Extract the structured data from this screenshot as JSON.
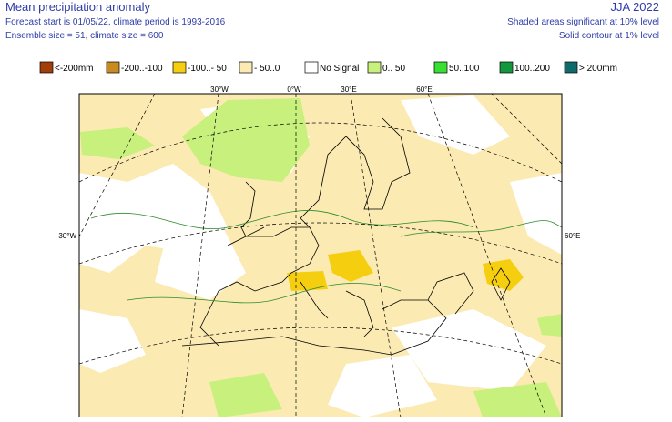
{
  "header": {
    "title": "Mean precipitation anomaly",
    "line1": "Forecast start is 01/05/22, climate period is 1993-2016",
    "line2": "Ensemble size = 51, climate size = 600",
    "season": "JJA 2022",
    "note1": "Shaded areas significant at 10% level",
    "note2": "Solid contour at 1% level"
  },
  "legend": [
    {
      "label": "<-200mm",
      "color": "#a23e0a"
    },
    {
      "label": "-200..-100",
      "color": "#c88c1e"
    },
    {
      "label": "-100..- 50",
      "color": "#f6ce10"
    },
    {
      "label": "- 50..0",
      "color": "#fbeab2"
    },
    {
      "label": "No Signal",
      "color": "#ffffff"
    },
    {
      "label": "0.. 50",
      "color": "#c8f07c"
    },
    {
      "label": "50..100",
      "color": "#38e032"
    },
    {
      "label": "100..200",
      "color": "#14963c"
    },
    {
      "label": "> 200mm",
      "color": "#0f6b6b"
    }
  ],
  "map": {
    "top_labels": [
      "30°W",
      "0°W",
      "30°E",
      "60°E"
    ],
    "left_label": "30°W",
    "right_label": "60°E"
  }
}
